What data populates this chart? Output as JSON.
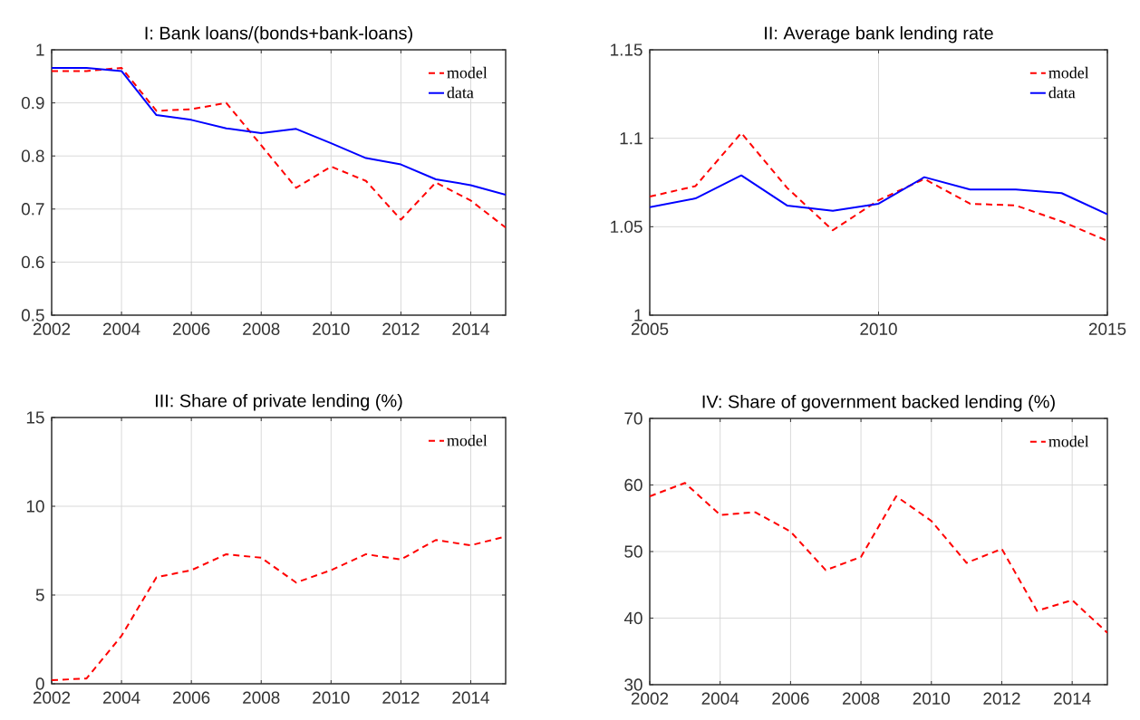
{
  "chart_data": [
    {
      "type": "line",
      "title": "I: Bank loans/(bonds+bank-loans)",
      "x": [
        2002,
        2003,
        2004,
        2005,
        2006,
        2007,
        2008,
        2009,
        2010,
        2011,
        2012,
        2013,
        2014,
        2015
      ],
      "series": [
        {
          "name": "model",
          "color": "#ff0000",
          "line_style": "dashed",
          "values": [
            0.96,
            0.96,
            0.966,
            0.885,
            0.888,
            0.9,
            0.82,
            0.74,
            0.78,
            0.753,
            0.68,
            0.75,
            0.716,
            0.665
          ]
        },
        {
          "name": "data",
          "color": "#0000ff",
          "line_style": "solid",
          "values": [
            0.966,
            0.966,
            0.96,
            0.877,
            0.868,
            0.852,
            0.843,
            0.851,
            0.824,
            0.796,
            0.784,
            0.756,
            0.745,
            0.727
          ]
        }
      ],
      "xlim": [
        2002,
        2015
      ],
      "ylim": [
        0.5,
        1
      ],
      "xticks": [
        2002,
        2004,
        2006,
        2008,
        2010,
        2012,
        2014
      ],
      "yticks": [
        0.5,
        0.6,
        0.7,
        0.8,
        0.9,
        1
      ],
      "grid": true,
      "legend": "top right"
    },
    {
      "type": "line",
      "title": "II: Average bank lending rate",
      "x": [
        2005,
        2006,
        2007,
        2008,
        2009,
        2010,
        2011,
        2012,
        2013,
        2014,
        2015
      ],
      "series": [
        {
          "name": "model",
          "color": "#ff0000",
          "line_style": "dashed",
          "values": [
            1.067,
            1.073,
            1.103,
            1.072,
            1.048,
            1.065,
            1.077,
            1.063,
            1.062,
            1.053,
            1.042
          ]
        },
        {
          "name": "data",
          "color": "#0000ff",
          "line_style": "solid",
          "values": [
            1.061,
            1.066,
            1.079,
            1.062,
            1.059,
            1.063,
            1.078,
            1.071,
            1.071,
            1.069,
            1.057
          ]
        }
      ],
      "xlim": [
        2005,
        2015
      ],
      "ylim": [
        1,
        1.15
      ],
      "xticks": [
        2005,
        2010,
        2015
      ],
      "yticks": [
        1,
        1.05,
        1.1,
        1.15
      ],
      "grid": true,
      "legend": "top right"
    },
    {
      "type": "line",
      "title": "III: Share of private  lending (%)",
      "x": [
        2002,
        2003,
        2004,
        2005,
        2006,
        2007,
        2008,
        2009,
        2010,
        2011,
        2012,
        2013,
        2014,
        2015
      ],
      "series": [
        {
          "name": "model",
          "color": "#ff0000",
          "line_style": "dashed",
          "values": [
            0.2,
            0.3,
            2.7,
            6.0,
            6.4,
            7.3,
            7.1,
            5.7,
            6.4,
            7.3,
            7.0,
            8.1,
            7.8,
            8.3
          ]
        }
      ],
      "xlim": [
        2002,
        2015
      ],
      "ylim": [
        0,
        15
      ],
      "xticks": [
        2002,
        2004,
        2006,
        2008,
        2010,
        2012,
        2014
      ],
      "yticks": [
        0,
        5,
        10,
        15
      ],
      "grid": true,
      "legend": "top right"
    },
    {
      "type": "line",
      "title": "IV: Share of government backed lending (%)",
      "x": [
        2002,
        2003,
        2004,
        2005,
        2006,
        2007,
        2008,
        2009,
        2010,
        2011,
        2012,
        2013,
        2014,
        2015
      ],
      "series": [
        {
          "name": "model",
          "color": "#ff0000",
          "line_style": "dashed",
          "values": [
            58.3,
            60.3,
            55.5,
            55.9,
            53.0,
            47.2,
            49.2,
            58.3,
            54.6,
            48.3,
            50.4,
            41.1,
            42.7,
            37.8
          ]
        }
      ],
      "xlim": [
        2002,
        2015
      ],
      "ylim": [
        30,
        70
      ],
      "xticks": [
        2002,
        2004,
        2006,
        2008,
        2010,
        2012,
        2014
      ],
      "yticks": [
        30,
        40,
        50,
        60,
        70
      ],
      "grid": true,
      "legend": "top right"
    }
  ]
}
